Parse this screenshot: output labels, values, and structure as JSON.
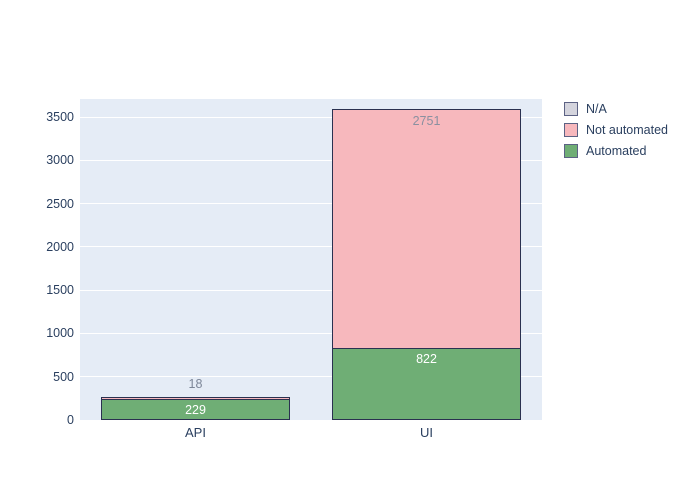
{
  "chart_data": {
    "type": "bar",
    "stacked": true,
    "orientation": "vertical",
    "title": "",
    "xlabel": "",
    "ylabel": "",
    "categories": [
      "API",
      "UI"
    ],
    "series": [
      {
        "name": "Automated",
        "color": "#6fae75",
        "values": [
          229,
          822
        ],
        "label_color": "#ffffff"
      },
      {
        "name": "Not automated",
        "color": "#f7b8bd",
        "values": [
          18,
          2751
        ],
        "label_color": "#8a90a0"
      },
      {
        "name": "N/A",
        "color": "#d4d4dd",
        "values": [
          0,
          0
        ],
        "label_color": "#8a90a0"
      }
    ],
    "bar_value_labels": {
      "API": {
        "Automated": "229",
        "Not automated": "18"
      },
      "UI": {
        "Automated": "822",
        "Not automated": "2751"
      }
    },
    "yticks": [
      "0",
      "500",
      "1000",
      "1500",
      "2000",
      "2500",
      "3000",
      "3500"
    ],
    "ytick_values": [
      0,
      500,
      1000,
      1500,
      2000,
      2500,
      3000,
      3500
    ],
    "ylim": [
      0,
      3708
    ],
    "grid": true,
    "legend": {
      "position": "top-right",
      "entries": [
        {
          "label": "N/A",
          "color": "#d4d4dd"
        },
        {
          "label": "Not automated",
          "color": "#f7b8bd"
        },
        {
          "label": "Automated",
          "color": "#6fae75"
        }
      ]
    },
    "colors": {
      "plot_background": "#e5ecf6",
      "gridline": "#ffffff",
      "axis_text": "#2a3f5f",
      "bar_border": "#2a3150",
      "outside_label": "#7c8698",
      "legend_text": "#2a3f5f",
      "legend_swatch_border": "#5c6284"
    }
  }
}
